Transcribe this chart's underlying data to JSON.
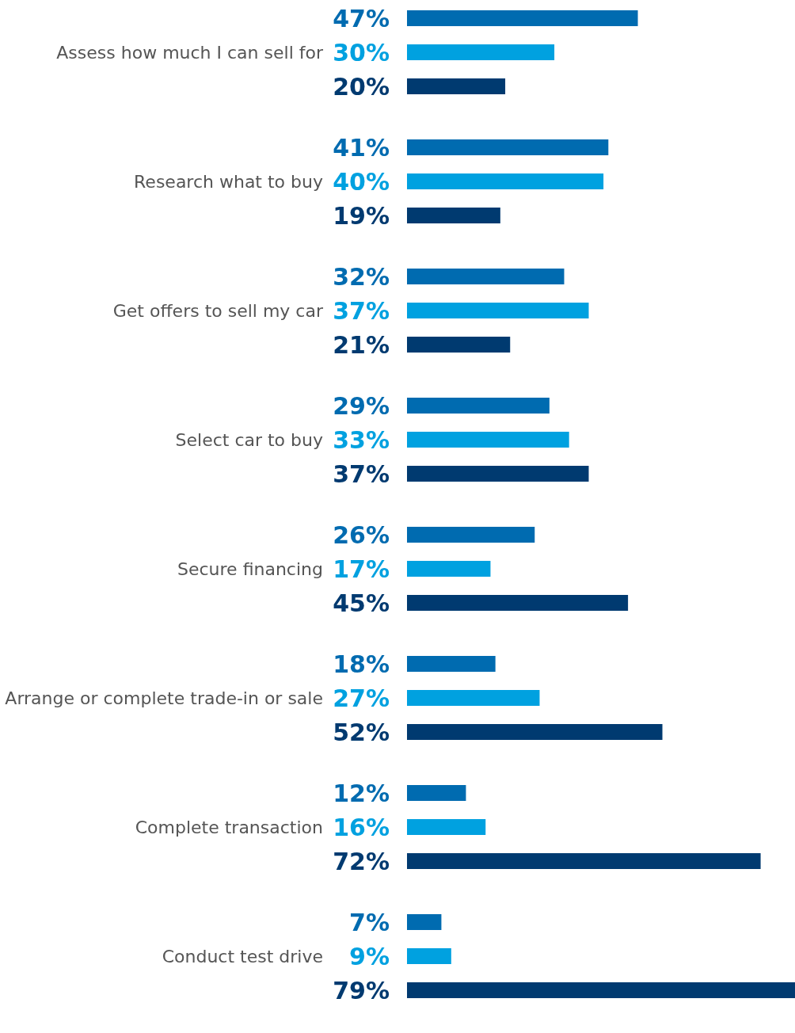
{
  "chart_data": {
    "type": "bar",
    "orientation": "horizontal",
    "categories": [
      "Assess how much I can sell for",
      "Research what to buy",
      "Get offers to sell my car",
      "Select car to buy",
      "Secure financing",
      "Arrange or complete trade-in or sale",
      "Complete transaction",
      "Conduct test drive"
    ],
    "series": [
      {
        "color": "#006bb0",
        "values": [
          47,
          41,
          32,
          29,
          26,
          18,
          12,
          7
        ],
        "value_labels": [
          "47%",
          "41%",
          "32%",
          "29%",
          "26%",
          "18%",
          "12%",
          "7%"
        ]
      },
      {
        "color": "#00a1e0",
        "values": [
          30,
          40,
          37,
          33,
          17,
          27,
          16,
          9
        ],
        "value_labels": [
          "30%",
          "40%",
          "37%",
          "33%",
          "17%",
          "27%",
          "16%",
          "9%"
        ]
      },
      {
        "color": "#003a70",
        "values": [
          20,
          19,
          21,
          37,
          45,
          52,
          72,
          79
        ],
        "value_labels": [
          "20%",
          "19%",
          "21%",
          "37%",
          "45%",
          "52%",
          "72%",
          "79%"
        ]
      }
    ]
  }
}
